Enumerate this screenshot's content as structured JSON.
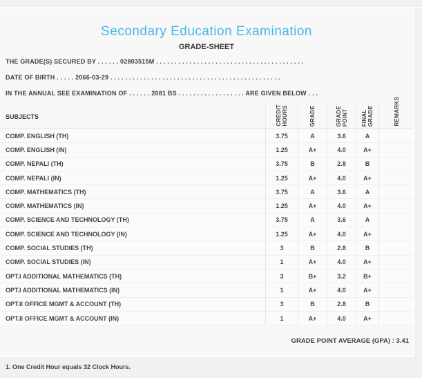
{
  "page": {
    "title": "Secondary Education Examination",
    "subtitle": "GRADE-SHEET"
  },
  "colors": {
    "title_accent": "#47b6e8",
    "text": "#3d3d3d",
    "panel_bg": "#f8f8f8"
  },
  "info_lines": [
    "THE GRADE(S) SECURED BY . . . . . . 02803515M . . . . . . . . . . . . . . . . . . . . . . . . . . . . . . . . . . . . . . . .",
    "DATE OF BIRTH . . . . . 2066-03-29 . . . . . . . . . . . . . . . . . . . . . . . . . . . . . . . . . . . . . . . . . . . . . .",
    "IN THE ANNUAL SEE EXAMINATION OF . . . . . . 2081 BS . . . . . . . . . . . . . . . . . . ARE GIVEN BELOW . . ."
  ],
  "table": {
    "subjects_header": "SUBJECTS",
    "columns": {
      "credit_hours": "CREDIT\nHOURS",
      "grade": "GRADE",
      "grade_point": "GRADE\nPOINT",
      "final_grade": "FINAL\nGRADE",
      "remarks": "REMARKS"
    },
    "rows": [
      {
        "subject": "COMP. ENGLISH (TH)",
        "credit_hours": "3.75",
        "grade": "A",
        "grade_point": "3.6",
        "final_grade": "A",
        "remarks": ""
      },
      {
        "subject": "COMP. ENGLISH (IN)",
        "credit_hours": "1.25",
        "grade": "A+",
        "grade_point": "4.0",
        "final_grade": "A+",
        "remarks": ""
      },
      {
        "subject": "COMP. NEPALI (TH)",
        "credit_hours": "3.75",
        "grade": "B",
        "grade_point": "2.8",
        "final_grade": "B",
        "remarks": ""
      },
      {
        "subject": "COMP. NEPALI (IN)",
        "credit_hours": "1.25",
        "grade": "A+",
        "grade_point": "4.0",
        "final_grade": "A+",
        "remarks": ""
      },
      {
        "subject": "COMP. MATHEMATICS (TH)",
        "credit_hours": "3.75",
        "grade": "A",
        "grade_point": "3.6",
        "final_grade": "A",
        "remarks": ""
      },
      {
        "subject": "COMP. MATHEMATICS (IN)",
        "credit_hours": "1.25",
        "grade": "A+",
        "grade_point": "4.0",
        "final_grade": "A+",
        "remarks": ""
      },
      {
        "subject": "COMP. SCIENCE AND TECHNOLOGY (TH)",
        "credit_hours": "3.75",
        "grade": "A",
        "grade_point": "3.6",
        "final_grade": "A",
        "remarks": ""
      },
      {
        "subject": "COMP. SCIENCE AND TECHNOLOGY (IN)",
        "credit_hours": "1.25",
        "grade": "A+",
        "grade_point": "4.0",
        "final_grade": "A+",
        "remarks": ""
      },
      {
        "subject": "COMP. SOCIAL STUDIES (TH)",
        "credit_hours": "3",
        "grade": "B",
        "grade_point": "2.8",
        "final_grade": "B",
        "remarks": ""
      },
      {
        "subject": "COMP. SOCIAL STUDIES (IN)",
        "credit_hours": "1",
        "grade": "A+",
        "grade_point": "4.0",
        "final_grade": "A+",
        "remarks": ""
      },
      {
        "subject": "OPT.I ADDITIONAL MATHEMATICS (TH)",
        "credit_hours": "3",
        "grade": "B+",
        "grade_point": "3.2",
        "final_grade": "B+",
        "remarks": ""
      },
      {
        "subject": "OPT.I ADDITIONAL MATHEMATICS (IN)",
        "credit_hours": "1",
        "grade": "A+",
        "grade_point": "4.0",
        "final_grade": "A+",
        "remarks": ""
      },
      {
        "subject": "OPT.II OFFICE MGMT & ACCOUNT (TH)",
        "credit_hours": "3",
        "grade": "B",
        "grade_point": "2.8",
        "final_grade": "B",
        "remarks": ""
      },
      {
        "subject": "OPT.II OFFICE MGMT & ACCOUNT (IN)",
        "credit_hours": "1",
        "grade": "A+",
        "grade_point": "4.0",
        "final_grade": "A+",
        "remarks": ""
      }
    ]
  },
  "summary": {
    "gpa_label": "GRADE POINT AVERAGE (GPA) :",
    "gpa_value": "3.41"
  },
  "footer": {
    "note": "1. One Credit Hour equals 32 Clock Hours."
  }
}
